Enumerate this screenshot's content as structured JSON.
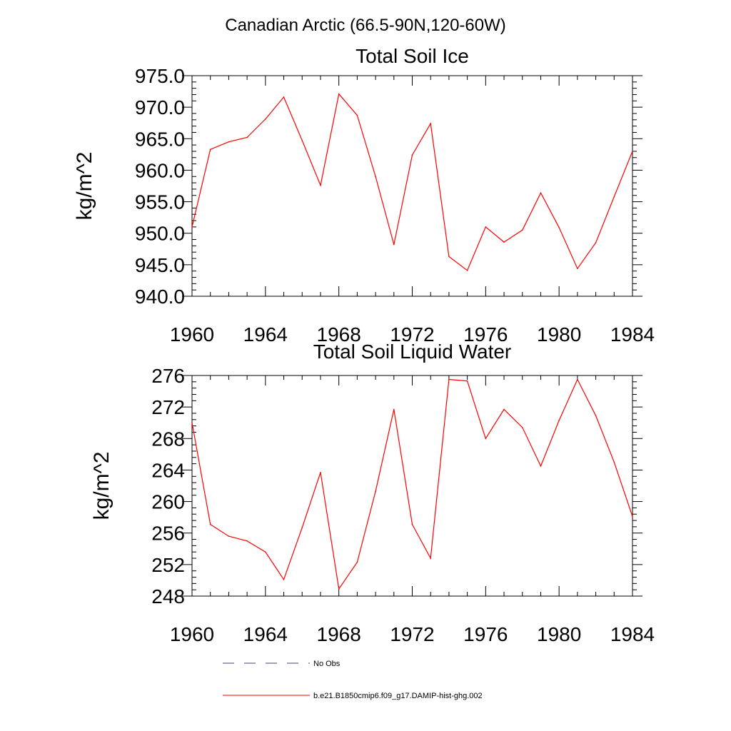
{
  "figure": {
    "main_title": "Canadian Arctic (66.5-90N,120-60W)"
  },
  "legend": {
    "items": [
      {
        "label": "No Obs",
        "style": "dashed",
        "color": "#44446e"
      },
      {
        "label": "b.e21.B1850cmip6.f09_g17.DAMIP-hist-ghg.002",
        "style": "solid",
        "color": "#ff0000"
      }
    ]
  },
  "chart_data": [
    {
      "type": "line",
      "title": "Total Soil Ice",
      "xlabel": "",
      "ylabel": "kg/m^2",
      "xlim": [
        1960,
        1984
      ],
      "ylim": [
        940,
        975
      ],
      "xticks": [
        1960,
        1964,
        1968,
        1972,
        1976,
        1980,
        1984
      ],
      "xtick_labels": [
        "1960",
        "1964",
        "1968",
        "1972",
        "1976",
        "1980",
        "1984"
      ],
      "yticks": [
        940,
        945,
        950,
        955,
        960,
        965,
        970,
        975
      ],
      "ytick_labels": [
        "940.0",
        "945.0",
        "950.0",
        "955.0",
        "960.0",
        "965.0",
        "970.0",
        "975.0"
      ],
      "grid": false,
      "series": [
        {
          "name": "b.e21.B1850cmip6.f09_g17.DAMIP-hist-ghg.002",
          "color": "#ff0000",
          "x": [
            1960,
            1961,
            1962,
            1963,
            1964,
            1965,
            1966,
            1967,
            1968,
            1969,
            1970,
            1971,
            1972,
            1973,
            1974,
            1975,
            1976,
            1977,
            1978,
            1979,
            1980,
            1981,
            1982,
            1983,
            1984
          ],
          "y": [
            951.0,
            963.3,
            964.5,
            965.2,
            968.1,
            971.6,
            964.7,
            957.6,
            972.1,
            968.7,
            959.0,
            948.2,
            962.4,
            967.4,
            946.3,
            944.1,
            951.0,
            948.6,
            950.5,
            956.4,
            950.9,
            944.4,
            948.5,
            955.8,
            963.0
          ]
        }
      ]
    },
    {
      "type": "line",
      "title": "Total Soil Liquid Water",
      "xlabel": "",
      "ylabel": "kg/m^2",
      "xlim": [
        1960,
        1984
      ],
      "ylim": [
        248,
        276
      ],
      "xticks": [
        1960,
        1964,
        1968,
        1972,
        1976,
        1980,
        1984
      ],
      "xtick_labels": [
        "1960",
        "1964",
        "1968",
        "1972",
        "1976",
        "1980",
        "1984"
      ],
      "yticks": [
        248,
        252,
        256,
        260,
        264,
        268,
        272,
        276
      ],
      "ytick_labels": [
        "248",
        "252",
        "256",
        "260",
        "264",
        "268",
        "272",
        "276"
      ],
      "grid": false,
      "series": [
        {
          "name": "b.e21.B1850cmip6.f09_g17.DAMIP-hist-ghg.002",
          "color": "#ff0000",
          "x": [
            1960,
            1961,
            1962,
            1963,
            1964,
            1965,
            1966,
            1967,
            1968,
            1969,
            1970,
            1971,
            1972,
            1973,
            1974,
            1975,
            1976,
            1977,
            1978,
            1979,
            1980,
            1981,
            1982,
            1983,
            1984
          ],
          "y": [
            270.0,
            257.1,
            255.6,
            255.0,
            253.6,
            250.1,
            256.7,
            263.7,
            248.9,
            252.3,
            261.3,
            271.7,
            257.1,
            252.8,
            275.5,
            275.3,
            268.0,
            271.7,
            269.4,
            264.5,
            270.3,
            275.5,
            270.9,
            265.0,
            258.1
          ]
        }
      ]
    }
  ]
}
